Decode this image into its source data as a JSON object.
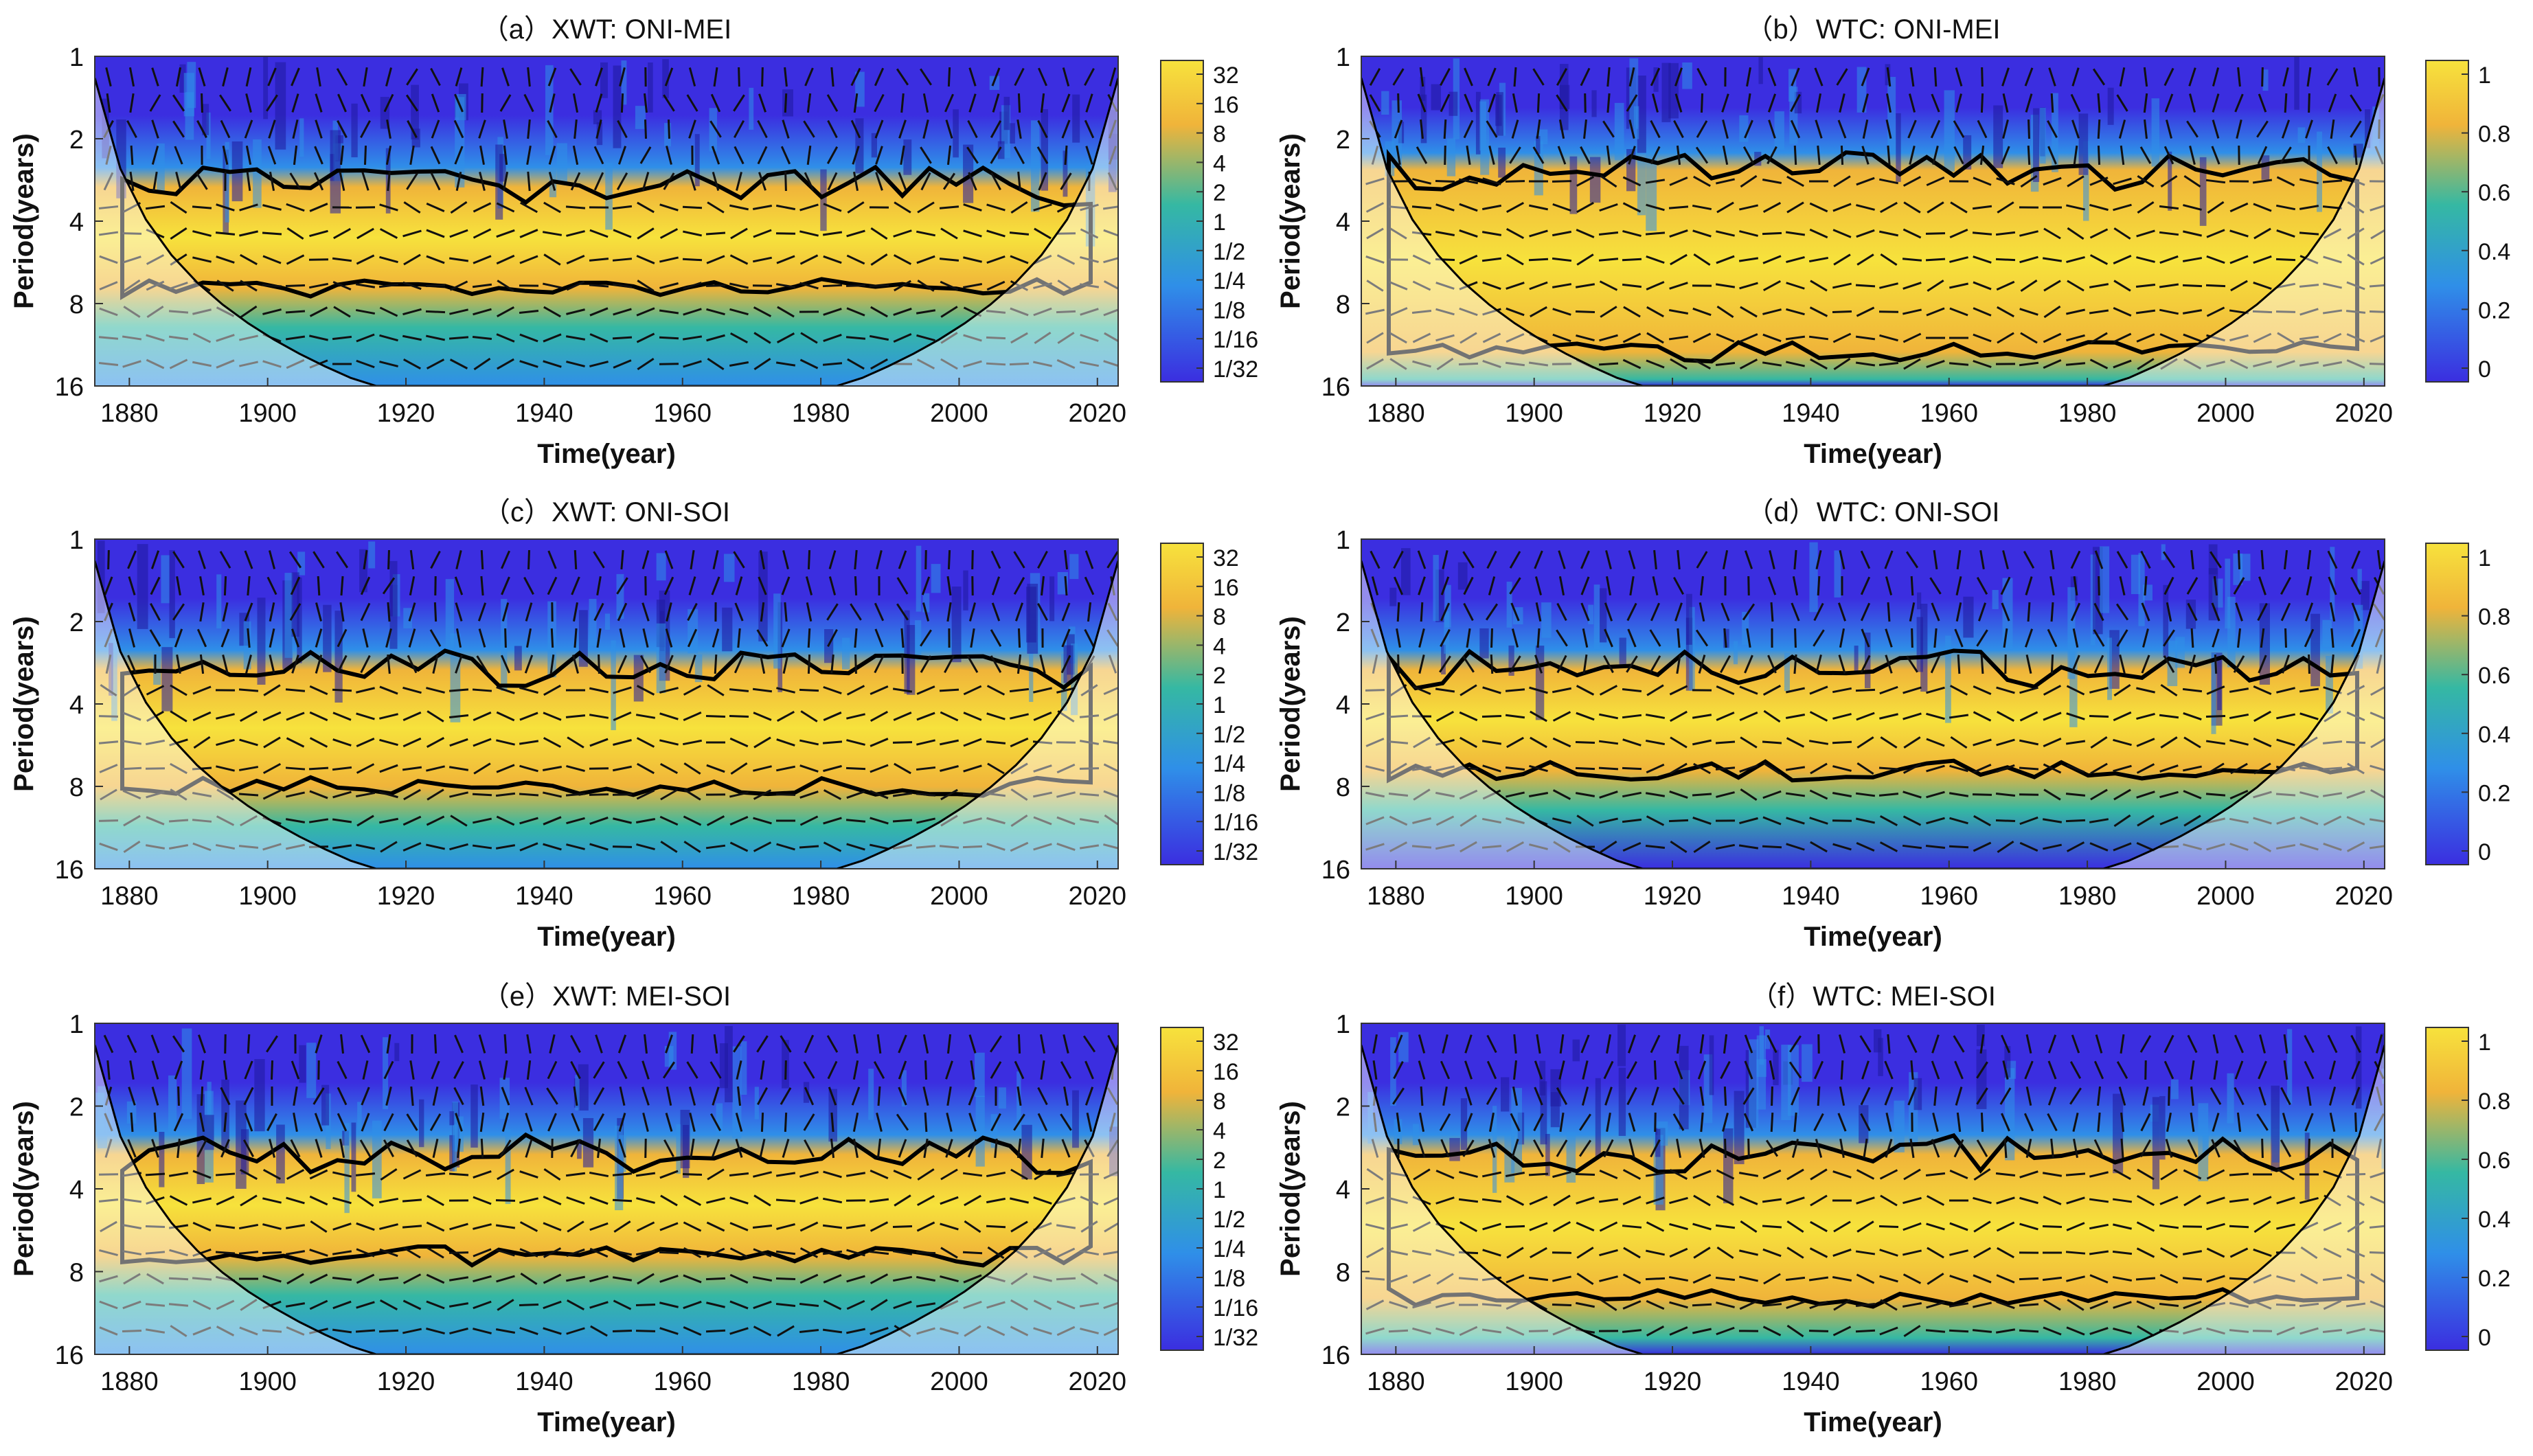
{
  "chart_data": [
    {
      "panel": "a",
      "title": "（a）XWT: ONI-MEI",
      "type": "heatmap",
      "kind": "xwt",
      "xlabel": "Time(year)",
      "ylabel": "Period(years)",
      "x_ticks": [
        "1880",
        "1900",
        "1920",
        "1940",
        "1960",
        "1980",
        "2000",
        "2020"
      ],
      "y_ticks": [
        "1",
        "2",
        "4",
        "8",
        "16"
      ],
      "xlim": [
        1875,
        2023
      ],
      "ylim": [
        1,
        16
      ],
      "y_scale": "log2",
      "colorbar_ticks": [
        "32",
        "16",
        "8",
        "4",
        "2",
        "1",
        "1/2",
        "1/4",
        "1/8",
        "1/16",
        "1/32"
      ],
      "colorbar_range": [
        0.03125,
        32
      ],
      "significant_band_years": [
        3,
        7
      ]
    },
    {
      "panel": "b",
      "title": "（b）WTC: ONI-MEI",
      "type": "heatmap",
      "kind": "wtc",
      "xlabel": "Time(year)",
      "ylabel": "Period(years)",
      "x_ticks": [
        "1880",
        "1900",
        "1920",
        "1940",
        "1960",
        "1980",
        "2000",
        "2020"
      ],
      "y_ticks": [
        "1",
        "2",
        "4",
        "8",
        "16"
      ],
      "xlim": [
        1875,
        2023
      ],
      "ylim": [
        1,
        16
      ],
      "y_scale": "log2",
      "colorbar_ticks": [
        "1",
        "0.8",
        "0.6",
        "0.4",
        "0.2",
        "0"
      ],
      "colorbar_range": [
        0,
        1
      ],
      "significant_band_years": [
        2.6,
        12
      ]
    },
    {
      "panel": "c",
      "title": "（c）XWT: ONI-SOI",
      "type": "heatmap",
      "kind": "xwt",
      "xlabel": "Time(year)",
      "ylabel": "Period(years)",
      "x_ticks": [
        "1880",
        "1900",
        "1920",
        "1940",
        "1960",
        "1980",
        "2000",
        "2020"
      ],
      "y_ticks": [
        "1",
        "2",
        "4",
        "8",
        "16"
      ],
      "xlim": [
        1875,
        2023
      ],
      "ylim": [
        1,
        16
      ],
      "y_scale": "log2",
      "colorbar_ticks": [
        "32",
        "16",
        "8",
        "4",
        "2",
        "1",
        "1/2",
        "1/4",
        "1/8",
        "1/16",
        "1/32"
      ],
      "colorbar_range": [
        0.03125,
        32
      ],
      "significant_band_years": [
        3,
        8
      ]
    },
    {
      "panel": "d",
      "title": "（d）WTC: ONI-SOI",
      "type": "heatmap",
      "kind": "wtc",
      "xlabel": "Time(year)",
      "ylabel": "Period(years)",
      "x_ticks": [
        "1880",
        "1900",
        "1920",
        "1940",
        "1960",
        "1980",
        "2000",
        "2020"
      ],
      "y_ticks": [
        "1",
        "2",
        "4",
        "8",
        "16"
      ],
      "xlim": [
        1875,
        2023
      ],
      "ylim": [
        1,
        16
      ],
      "y_scale": "log2",
      "colorbar_ticks": [
        "1",
        "0.8",
        "0.6",
        "0.4",
        "0.2",
        "0"
      ],
      "colorbar_range": [
        0,
        1
      ],
      "significant_band_years": [
        3,
        7
      ]
    },
    {
      "panel": "e",
      "title": "（e）XWT: MEI-SOI",
      "type": "heatmap",
      "kind": "xwt",
      "xlabel": "Time(year)",
      "ylabel": "Period(years)",
      "x_ticks": [
        "1880",
        "1900",
        "1920",
        "1940",
        "1960",
        "1980",
        "2000",
        "2020"
      ],
      "y_ticks": [
        "1",
        "2",
        "4",
        "8",
        "16"
      ],
      "xlim": [
        1875,
        2023
      ],
      "ylim": [
        1,
        16
      ],
      "y_scale": "log2",
      "colorbar_ticks": [
        "32",
        "16",
        "8",
        "4",
        "2",
        "1",
        "1/2",
        "1/4",
        "1/8",
        "1/16",
        "1/32"
      ],
      "colorbar_range": [
        0.03125,
        32
      ],
      "significant_band_years": [
        3,
        7
      ]
    },
    {
      "panel": "f",
      "title": "（f）WTC: MEI-SOI",
      "type": "heatmap",
      "kind": "wtc",
      "xlabel": "Time(year)",
      "ylabel": "Period(years)",
      "x_ticks": [
        "1880",
        "1900",
        "1920",
        "1940",
        "1960",
        "1980",
        "2000",
        "2020"
      ],
      "y_ticks": [
        "1",
        "2",
        "4",
        "8",
        "16"
      ],
      "xlim": [
        1875,
        2023
      ],
      "ylim": [
        1,
        16
      ],
      "y_scale": "log2",
      "colorbar_ticks": [
        "1",
        "0.8",
        "0.6",
        "0.4",
        "0.2",
        "0"
      ],
      "colorbar_range": [
        0,
        1
      ],
      "significant_band_years": [
        3,
        10
      ]
    }
  ],
  "colors": {
    "low": "#3b2ee0",
    "mid_low": "#2f8fe8",
    "mid": "#35b8a3",
    "mid_high": "#f0b43a",
    "high": "#f7e23c",
    "contour": "#000000",
    "arrow": "#111111",
    "coi_arrow": "#7a7a7a"
  }
}
